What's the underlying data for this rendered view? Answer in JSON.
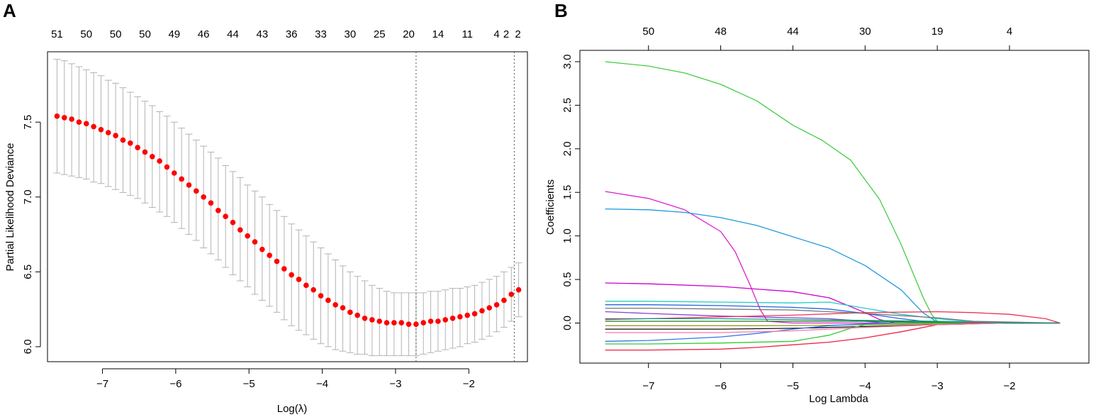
{
  "chart_data": [
    {
      "panel_label": "A",
      "type": "scatter",
      "subtype": "cv-errorbar",
      "xlabel": "Log(λ)",
      "ylabel": "Partial Likelihood Deviance",
      "xlim": [
        -7.75,
        -1.2
      ],
      "ylim": [
        5.9,
        7.97
      ],
      "x_ticks": [
        -7,
        -6,
        -5,
        -4,
        -3,
        -2
      ],
      "x_tick_labels": [
        "−7",
        "−6",
        "−5",
        "−4",
        "−3",
        "−2"
      ],
      "y_ticks": [
        6.0,
        6.5,
        7.0,
        7.5
      ],
      "y_tick_labels": [
        "6.0",
        "6.5",
        "7.0",
        "7.5"
      ],
      "top_axis_counts": [
        "51",
        "50",
        "50",
        "50",
        "49",
        "46",
        "44",
        "43",
        "36",
        "33",
        "30",
        "25",
        "20",
        "14",
        "11",
        "4",
        "2",
        "2"
      ],
      "top_axis_log_lambda": [
        -7.62,
        -7.22,
        -6.82,
        -6.42,
        -6.02,
        -5.62,
        -5.22,
        -4.82,
        -4.42,
        -4.02,
        -3.62,
        -3.22,
        -2.82,
        -2.42,
        -2.02,
        -1.62,
        -1.33,
        -1.33
      ],
      "vlines_log_lambda": [
        -2.72,
        -1.38
      ],
      "x": [
        -7.62,
        -7.52,
        -7.42,
        -7.32,
        -7.22,
        -7.12,
        -7.02,
        -6.92,
        -6.82,
        -6.72,
        -6.62,
        -6.52,
        -6.42,
        -6.32,
        -6.22,
        -6.12,
        -6.02,
        -5.92,
        -5.82,
        -5.72,
        -5.62,
        -5.52,
        -5.42,
        -5.32,
        -5.22,
        -5.12,
        -5.02,
        -4.92,
        -4.82,
        -4.72,
        -4.62,
        -4.52,
        -4.42,
        -4.32,
        -4.22,
        -4.12,
        -4.02,
        -3.92,
        -3.82,
        -3.72,
        -3.62,
        -3.52,
        -3.42,
        -3.32,
        -3.22,
        -3.12,
        -3.02,
        -2.92,
        -2.82,
        -2.72,
        -2.62,
        -2.52,
        -2.42,
        -2.32,
        -2.22,
        -2.12,
        -2.02,
        -1.92,
        -1.82,
        -1.72,
        -1.62,
        -1.52,
        -1.42,
        -1.32
      ],
      "mean": [
        7.54,
        7.53,
        7.52,
        7.5,
        7.49,
        7.47,
        7.45,
        7.43,
        7.41,
        7.38,
        7.36,
        7.33,
        7.3,
        7.27,
        7.24,
        7.2,
        7.16,
        7.12,
        7.08,
        7.04,
        7.0,
        6.96,
        6.91,
        6.87,
        6.83,
        6.78,
        6.74,
        6.7,
        6.65,
        6.61,
        6.57,
        6.52,
        6.48,
        6.45,
        6.41,
        6.38,
        6.34,
        6.31,
        6.28,
        6.26,
        6.23,
        6.21,
        6.19,
        6.18,
        6.17,
        6.16,
        6.16,
        6.16,
        6.15,
        6.15,
        6.16,
        6.17,
        6.17,
        6.18,
        6.19,
        6.2,
        6.21,
        6.22,
        6.24,
        6.26,
        6.28,
        6.31,
        6.35,
        6.38
      ],
      "upper": [
        7.92,
        7.91,
        7.89,
        7.87,
        7.85,
        7.83,
        7.81,
        7.78,
        7.76,
        7.73,
        7.7,
        7.67,
        7.64,
        7.61,
        7.57,
        7.54,
        7.5,
        7.46,
        7.42,
        7.38,
        7.34,
        7.3,
        7.26,
        7.21,
        7.17,
        7.13,
        7.08,
        7.04,
        7.0,
        6.95,
        6.91,
        6.87,
        6.82,
        6.78,
        6.74,
        6.7,
        6.66,
        6.62,
        6.58,
        6.54,
        6.5,
        6.47,
        6.44,
        6.41,
        6.39,
        6.37,
        6.36,
        6.36,
        6.36,
        6.36,
        6.36,
        6.37,
        6.37,
        6.38,
        6.39,
        6.39,
        6.4,
        6.41,
        6.43,
        6.45,
        6.47,
        6.5,
        6.53,
        6.56
      ],
      "lower": [
        7.16,
        7.15,
        7.14,
        7.13,
        7.12,
        7.1,
        7.09,
        7.07,
        7.05,
        7.03,
        7.01,
        6.99,
        6.96,
        6.93,
        6.9,
        6.87,
        6.83,
        6.79,
        6.75,
        6.71,
        6.66,
        6.62,
        6.58,
        6.53,
        6.48,
        6.44,
        6.4,
        6.35,
        6.31,
        6.27,
        6.23,
        6.18,
        6.14,
        6.11,
        6.08,
        6.05,
        6.02,
        6.0,
        5.98,
        5.97,
        5.96,
        5.95,
        5.95,
        5.94,
        5.94,
        5.94,
        5.94,
        5.94,
        5.94,
        5.94,
        5.95,
        5.96,
        5.97,
        5.98,
        5.99,
        6.0,
        6.02,
        6.03,
        6.05,
        6.07,
        6.1,
        6.13,
        6.17,
        6.2
      ],
      "colors": {
        "point": "#ff0000",
        "errorbar": "#b3b3b3",
        "vline": "#555555"
      }
    },
    {
      "panel_label": "B",
      "type": "line",
      "xlabel": "Log Lambda",
      "ylabel": "Coefficients",
      "xlim": [
        -7.95,
        -0.9
      ],
      "ylim": [
        -0.46,
        3.13
      ],
      "x_ticks": [
        -7,
        -6,
        -5,
        -4,
        -3,
        -2
      ],
      "x_tick_labels": [
        "−7",
        "−6",
        "−5",
        "−4",
        "−3",
        "−2"
      ],
      "y_ticks": [
        0.0,
        0.5,
        1.0,
        1.5,
        2.0,
        2.5,
        3.0
      ],
      "y_tick_labels": [
        "0.0",
        "0.5",
        "1.0",
        "1.5",
        "2.0",
        "2.5",
        "3.0"
      ],
      "top_axis_counts": [
        "50",
        "48",
        "44",
        "30",
        "19",
        "4"
      ],
      "top_axis_log_lambda": [
        -7,
        -6,
        -5,
        -4,
        -3,
        -2
      ],
      "series": [
        {
          "name": "green-large",
          "color": "#44cc44",
          "x": [
            -7.6,
            -7.0,
            -6.5,
            -6.0,
            -5.5,
            -5.0,
            -4.6,
            -4.2,
            -3.8,
            -3.5,
            -3.2,
            -3.08,
            -3.0,
            -2.5,
            -2.0,
            -1.3
          ],
          "values": [
            3.0,
            2.95,
            2.87,
            2.74,
            2.55,
            2.27,
            2.1,
            1.87,
            1.42,
            0.9,
            0.3,
            0.1,
            0.02,
            0.005,
            0.0,
            0.0
          ]
        },
        {
          "name": "magenta-large",
          "color": "#dd22cc",
          "x": [
            -7.6,
            -7.0,
            -6.5,
            -6.0,
            -5.8,
            -5.6,
            -5.45,
            -5.35,
            -5.0,
            -4.0,
            -3.0,
            -1.3
          ],
          "values": [
            1.51,
            1.43,
            1.3,
            1.05,
            0.82,
            0.45,
            0.15,
            0.02,
            0.0,
            0.0,
            0.0,
            0.0
          ]
        },
        {
          "name": "blue-large",
          "color": "#2299dd",
          "x": [
            -7.6,
            -7.0,
            -6.5,
            -6.0,
            -5.5,
            -5.0,
            -4.5,
            -4.0,
            -3.5,
            -3.2,
            -3.0,
            -2.5,
            -1.3
          ],
          "values": [
            1.31,
            1.3,
            1.27,
            1.21,
            1.12,
            0.99,
            0.86,
            0.66,
            0.38,
            0.12,
            0.01,
            0.0,
            0.0
          ]
        },
        {
          "name": "magenta-mid",
          "color": "#cc00cc",
          "x": [
            -7.6,
            -7.0,
            -6.0,
            -5.5,
            -5.0,
            -4.5,
            -4.0,
            -3.8,
            -3.6,
            -3.0,
            -1.3
          ],
          "values": [
            0.46,
            0.45,
            0.42,
            0.39,
            0.36,
            0.29,
            0.12,
            0.04,
            0.005,
            0.0,
            0.0
          ]
        },
        {
          "name": "cyan",
          "color": "#22cccc",
          "x": [
            -7.6,
            -7.0,
            -6.0,
            -5.0,
            -4.5,
            -4.0,
            -3.5,
            -3.0,
            -2.5,
            -1.3
          ],
          "values": [
            0.25,
            0.25,
            0.24,
            0.23,
            0.24,
            0.17,
            0.1,
            0.05,
            0.01,
            0.0
          ]
        },
        {
          "name": "blue-small",
          "color": "#2266dd",
          "x": [
            -7.6,
            -7.0,
            -6.0,
            -5.0,
            -4.5,
            -4.0,
            -3.5,
            -3.2,
            -3.0,
            -1.3
          ],
          "values": [
            0.21,
            0.21,
            0.2,
            0.18,
            0.16,
            0.11,
            0.05,
            0.02,
            0.0,
            0.0
          ]
        },
        {
          "name": "purple",
          "color": "#8844cc",
          "x": [
            -7.6,
            -7.0,
            -6.0,
            -5.0,
            -4.5,
            -4.0,
            -3.8,
            -3.5,
            -1.3
          ],
          "values": [
            0.13,
            0.11,
            0.08,
            0.06,
            0.05,
            0.02,
            0.005,
            0.0,
            0.0
          ]
        },
        {
          "name": "red-positive",
          "color": "#ee3355",
          "x": [
            -7.6,
            -7.0,
            -6.0,
            -5.0,
            -4.0,
            -3.0,
            -2.5,
            -2.0,
            -1.5,
            -1.3
          ],
          "values": [
            0.04,
            0.05,
            0.07,
            0.09,
            0.12,
            0.13,
            0.12,
            0.1,
            0.05,
            0.0
          ]
        },
        {
          "name": "gray",
          "color": "#777777",
          "x": [
            -7.6,
            -7.0,
            -6.0,
            -5.0,
            -4.0,
            -3.0,
            -2.5,
            -1.3
          ],
          "values": [
            0.17,
            0.17,
            0.16,
            0.15,
            0.11,
            0.06,
            0.02,
            0.0
          ]
        },
        {
          "name": "black",
          "color": "#111111",
          "x": [
            -7.6,
            -7.0,
            -6.0,
            -5.0,
            -4.0,
            -3.0,
            -2.0,
            -1.3
          ],
          "values": [
            -0.07,
            -0.07,
            -0.07,
            -0.06,
            -0.04,
            -0.02,
            0.0,
            0.0
          ]
        },
        {
          "name": "darkgreen",
          "color": "#227722",
          "x": [
            -7.6,
            -6.0,
            -5.0,
            -4.0,
            -3.0,
            -2.0,
            -1.3
          ],
          "values": [
            0.02,
            0.02,
            0.02,
            0.02,
            0.01,
            0.0,
            0.0
          ]
        },
        {
          "name": "olive",
          "color": "#999922",
          "x": [
            -7.6,
            -6.0,
            -5.0,
            -4.0,
            -3.0,
            -2.0,
            -1.3
          ],
          "values": [
            -0.03,
            -0.03,
            -0.03,
            -0.02,
            -0.01,
            0.0,
            0.0
          ]
        },
        {
          "name": "blue-neg",
          "color": "#3377ee",
          "x": [
            -7.6,
            -7.0,
            -6.0,
            -5.5,
            -5.0,
            -4.5,
            -4.0,
            -3.5,
            -3.0,
            -1.3
          ],
          "values": [
            -0.21,
            -0.2,
            -0.16,
            -0.12,
            -0.07,
            -0.03,
            -0.01,
            0.0,
            0.0,
            0.0
          ]
        },
        {
          "name": "green-neg",
          "color": "#33cc33",
          "x": [
            -7.6,
            -7.0,
            -6.0,
            -5.0,
            -4.5,
            -4.2,
            -4.0,
            -3.5,
            -3.0,
            -1.3
          ],
          "values": [
            -0.24,
            -0.24,
            -0.23,
            -0.21,
            -0.14,
            -0.06,
            -0.02,
            0.0,
            0.0,
            0.0
          ]
        },
        {
          "name": "red-neg",
          "color": "#ee2244",
          "x": [
            -7.6,
            -7.0,
            -6.0,
            -5.5,
            -5.0,
            -4.5,
            -4.0,
            -3.5,
            -3.0,
            -2.5,
            -1.3
          ],
          "values": [
            -0.31,
            -0.31,
            -0.3,
            -0.28,
            -0.25,
            -0.22,
            -0.17,
            -0.1,
            -0.02,
            0.0,
            0.0
          ]
        },
        {
          "name": "pink-small",
          "color": "#ff77aa",
          "x": [
            -7.6,
            -6.0,
            -5.0,
            -4.0,
            -3.0,
            -2.0,
            -1.3
          ],
          "values": [
            -0.11,
            -0.11,
            -0.09,
            -0.05,
            -0.02,
            0.0,
            0.0
          ]
        },
        {
          "name": "teal-small",
          "color": "#119988",
          "x": [
            -7.6,
            -6.0,
            -5.0,
            -4.0,
            -3.0,
            -2.0,
            -1.3
          ],
          "values": [
            0.05,
            0.05,
            0.04,
            0.03,
            0.02,
            0.0,
            0.0
          ]
        }
      ]
    }
  ]
}
